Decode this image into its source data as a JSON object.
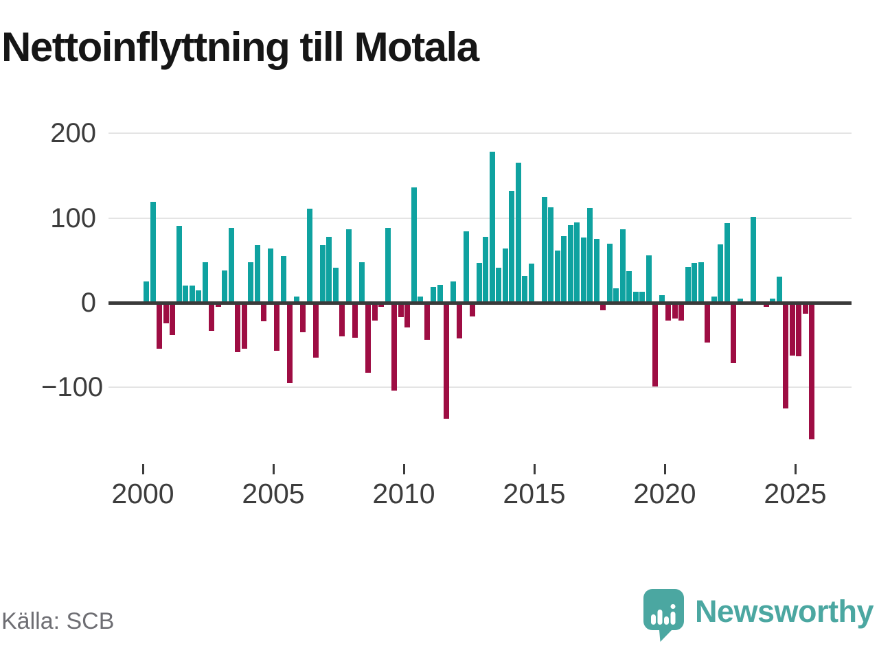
{
  "title": "Nettoinflyttning till Motala",
  "source": "Källa: SCB",
  "brand": {
    "name": "Newsworthy",
    "icon": "newsworthy-speech-bubble-chart-icon"
  },
  "colors": {
    "positive": "#0FA2A0",
    "negative": "#9E0D43",
    "grid": "#E4E4E4",
    "zero_axis": "#3A3A3A",
    "tick": "#3C3C3C",
    "title": "#161616",
    "source": "#6E6E73",
    "brand": "#4BA7A1"
  },
  "chart_data": {
    "type": "bar",
    "title": "Nettoinflyttning till Motala",
    "frequency": "quarterly",
    "start_period": "2000-Q1",
    "end_period": "2025-Q3",
    "values": [
      25,
      119,
      -54,
      -24,
      -38,
      91,
      20,
      20,
      15,
      48,
      -33,
      -5,
      38,
      88,
      -58,
      -54,
      48,
      68,
      -22,
      64,
      -57,
      55,
      -95,
      7,
      -35,
      111,
      -65,
      68,
      78,
      41,
      -40,
      87,
      -41,
      48,
      -83,
      -21,
      -5,
      88,
      -104,
      -17,
      -29,
      136,
      7,
      -44,
      19,
      21,
      -137,
      25,
      -42,
      84,
      -16,
      47,
      78,
      178,
      41,
      64,
      132,
      165,
      32,
      46,
      0,
      125,
      113,
      62,
      79,
      92,
      95,
      77,
      112,
      75,
      -9,
      70,
      17,
      87,
      37,
      13,
      13,
      56,
      -99,
      9,
      -21,
      -19,
      -21,
      42,
      47,
      48,
      -47,
      7,
      69,
      94,
      -71,
      5,
      0,
      101,
      0,
      -5,
      5,
      31,
      -125,
      -62,
      -63,
      -13,
      -161
    ],
    "yticks": [
      200,
      100,
      0,
      -100
    ],
    "ylim": [
      -175,
      215
    ],
    "xtick_years": [
      2000,
      2005,
      2010,
      2015,
      2020,
      2025
    ],
    "grid": true,
    "legend": "none"
  }
}
